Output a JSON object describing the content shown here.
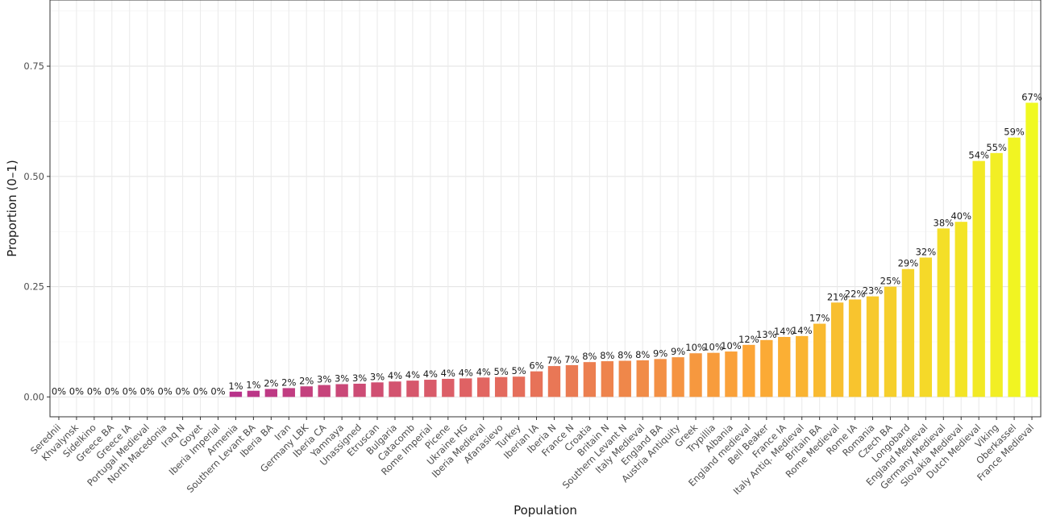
{
  "chart_data": {
    "type": "bar",
    "xlabel": "Population",
    "ylabel": "Proportion (0–1)",
    "ylim": [
      -0.045,
      0.9
    ],
    "yticks": [
      0.0,
      0.25,
      0.5,
      0.75
    ],
    "ytick_labels": [
      "0.00",
      "0.25",
      "0.50",
      "0.75"
    ],
    "grid": true,
    "color_gradient": [
      "#0d0887",
      "#6a00a8",
      "#b12a90",
      "#e16462",
      "#fca636",
      "#f0f921"
    ],
    "categories": [
      "Serednii",
      "Khvalynsk",
      "Sidelkino",
      "Greece BA",
      "Greece IA",
      "Portugal Medieval",
      "North Macedonia",
      "Iraq N",
      "Goyet",
      "Iberia Imperial",
      "Armenia",
      "Southern Levant BA",
      "Iberia BA",
      "Iran",
      "Germany LBK",
      "Iberia CA",
      "Yamnaya",
      "Unassigned",
      "Etruscan",
      "Bulgaria",
      "Catacomb",
      "Rome Imperial",
      "Picene",
      "Ukraine HG",
      "Iberia Medieval",
      "Afanasievo",
      "Turkey",
      "Iberian IA",
      "Iberia N",
      "France N",
      "Croatia",
      "Britain N",
      "Southern Levant N",
      "Italy Medieval",
      "England BA",
      "Austria Antiquity",
      "Greek",
      "Trypillia",
      "Albania",
      "England medieval",
      "Bell Beaker",
      "France IA",
      "Italy Antiq. Medieval",
      "Britain BA",
      "Rome Medieval",
      "Rome IA",
      "Romania",
      "Czech BA",
      "Longobard",
      "England Medieval",
      "Germany Medieval",
      "Slovakia Medieval",
      "Dutch Medieval",
      "Viking",
      "Oberkassel",
      "France Medieval"
    ],
    "values": [
      0,
      0,
      0,
      0,
      0,
      0,
      0,
      0,
      0,
      0,
      0.012,
      0.014,
      0.018,
      0.02,
      0.024,
      0.027,
      0.029,
      0.03,
      0.033,
      0.035,
      0.037,
      0.039,
      0.041,
      0.042,
      0.044,
      0.045,
      0.046,
      0.058,
      0.07,
      0.072,
      0.079,
      0.081,
      0.082,
      0.083,
      0.086,
      0.09,
      0.099,
      0.1,
      0.103,
      0.118,
      0.129,
      0.136,
      0.138,
      0.166,
      0.214,
      0.221,
      0.228,
      0.25,
      0.29,
      0.316,
      0.382,
      0.397,
      0.535,
      0.553,
      0.588,
      0.667
    ],
    "labels": [
      "0%",
      "0%",
      "0%",
      "0%",
      "0%",
      "0%",
      "0%",
      "0%",
      "0%",
      "0%",
      "1%",
      "1%",
      "2%",
      "2%",
      "2%",
      "3%",
      "3%",
      "3%",
      "3%",
      "4%",
      "4%",
      "4%",
      "4%",
      "4%",
      "4%",
      "5%",
      "5%",
      "6%",
      "7%",
      "7%",
      "8%",
      "8%",
      "8%",
      "8%",
      "9%",
      "9%",
      "10%",
      "10%",
      "10%",
      "12%",
      "13%",
      "14%",
      "14%",
      "17%",
      "21%",
      "22%",
      "23%",
      "25%",
      "29%",
      "32%",
      "38%",
      "40%",
      "54%",
      "55%",
      "59%",
      "67%"
    ]
  }
}
